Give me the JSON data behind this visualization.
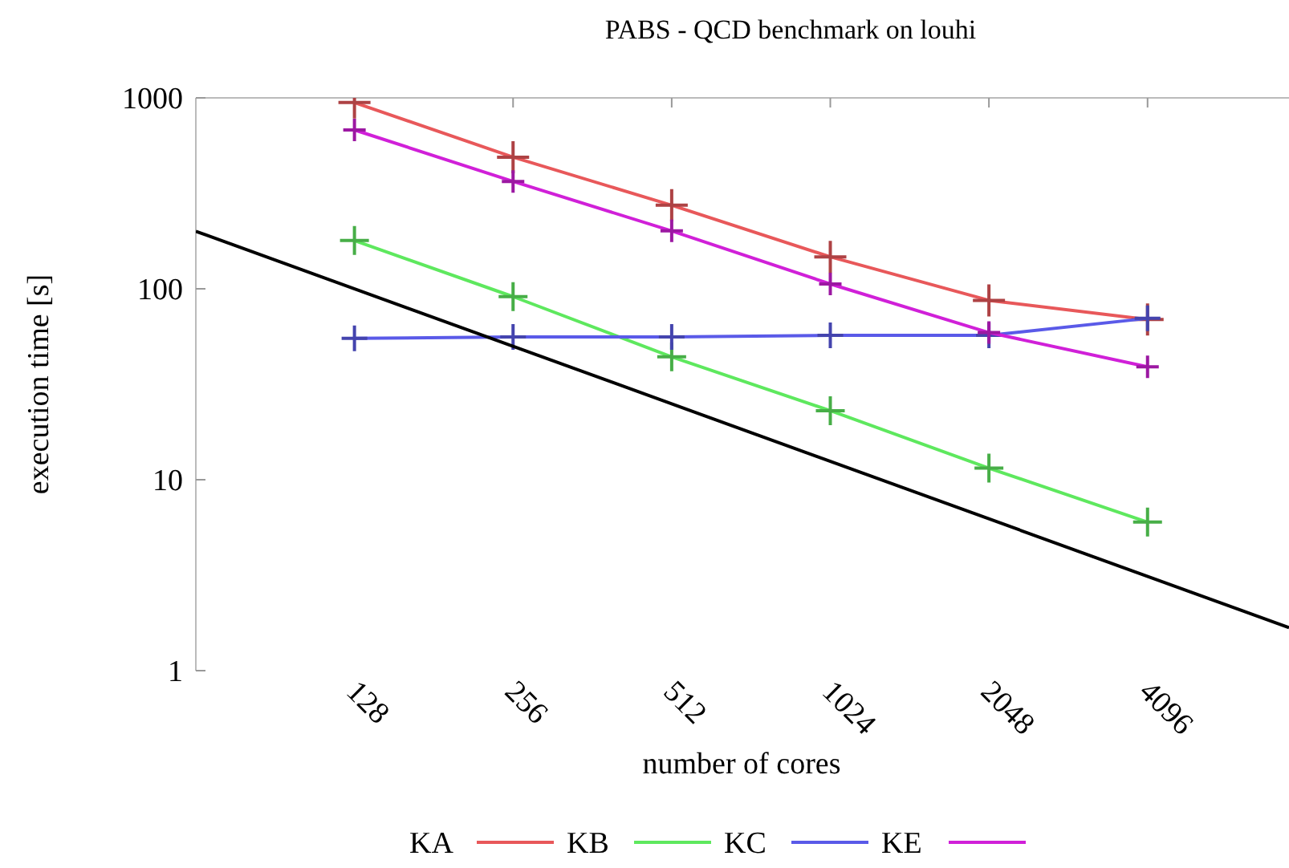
{
  "chart_data": {
    "type": "line",
    "title": "PABS - QCD benchmark on louhi",
    "xlabel": "number of cores",
    "ylabel": "execution time [s]",
    "log": "xy",
    "xlim": [
      64,
      7600
    ],
    "ylim": [
      1,
      1000
    ],
    "xticks": [
      128,
      256,
      512,
      1024,
      2048,
      4096
    ],
    "yticks": [
      1,
      10,
      100,
      1000
    ],
    "grid": false,
    "legend": "bottom",
    "marker": "cross",
    "line_style": "solid",
    "series": [
      {
        "name": "KA",
        "color": "#e8585a",
        "x": [
          128,
          256,
          512,
          1024,
          2048,
          4096
        ],
        "values": [
          945,
          489,
          274,
          147,
          87,
          69
        ]
      },
      {
        "name": "KB",
        "color": "#5ee85e",
        "x": [
          128,
          256,
          512,
          1024,
          2048,
          4096
        ],
        "values": [
          179,
          91,
          44,
          23,
          11.5,
          6
        ]
      },
      {
        "name": "KC",
        "color": "#5a5ae8",
        "x": [
          128,
          256,
          512,
          1024,
          2048,
          4096
        ],
        "values": [
          55,
          56,
          56,
          57,
          57,
          70
        ]
      },
      {
        "name": "KE",
        "color": "#d020d8",
        "x": [
          128,
          256,
          512,
          1024,
          2048,
          4096
        ],
        "values": [
          679,
          365,
          201,
          106,
          59,
          39
        ]
      },
      {
        "color": "#000000",
        "marker": "none",
        "x": [
          64,
          7600
        ],
        "values": [
          200,
          1.68
        ]
      }
    ]
  }
}
